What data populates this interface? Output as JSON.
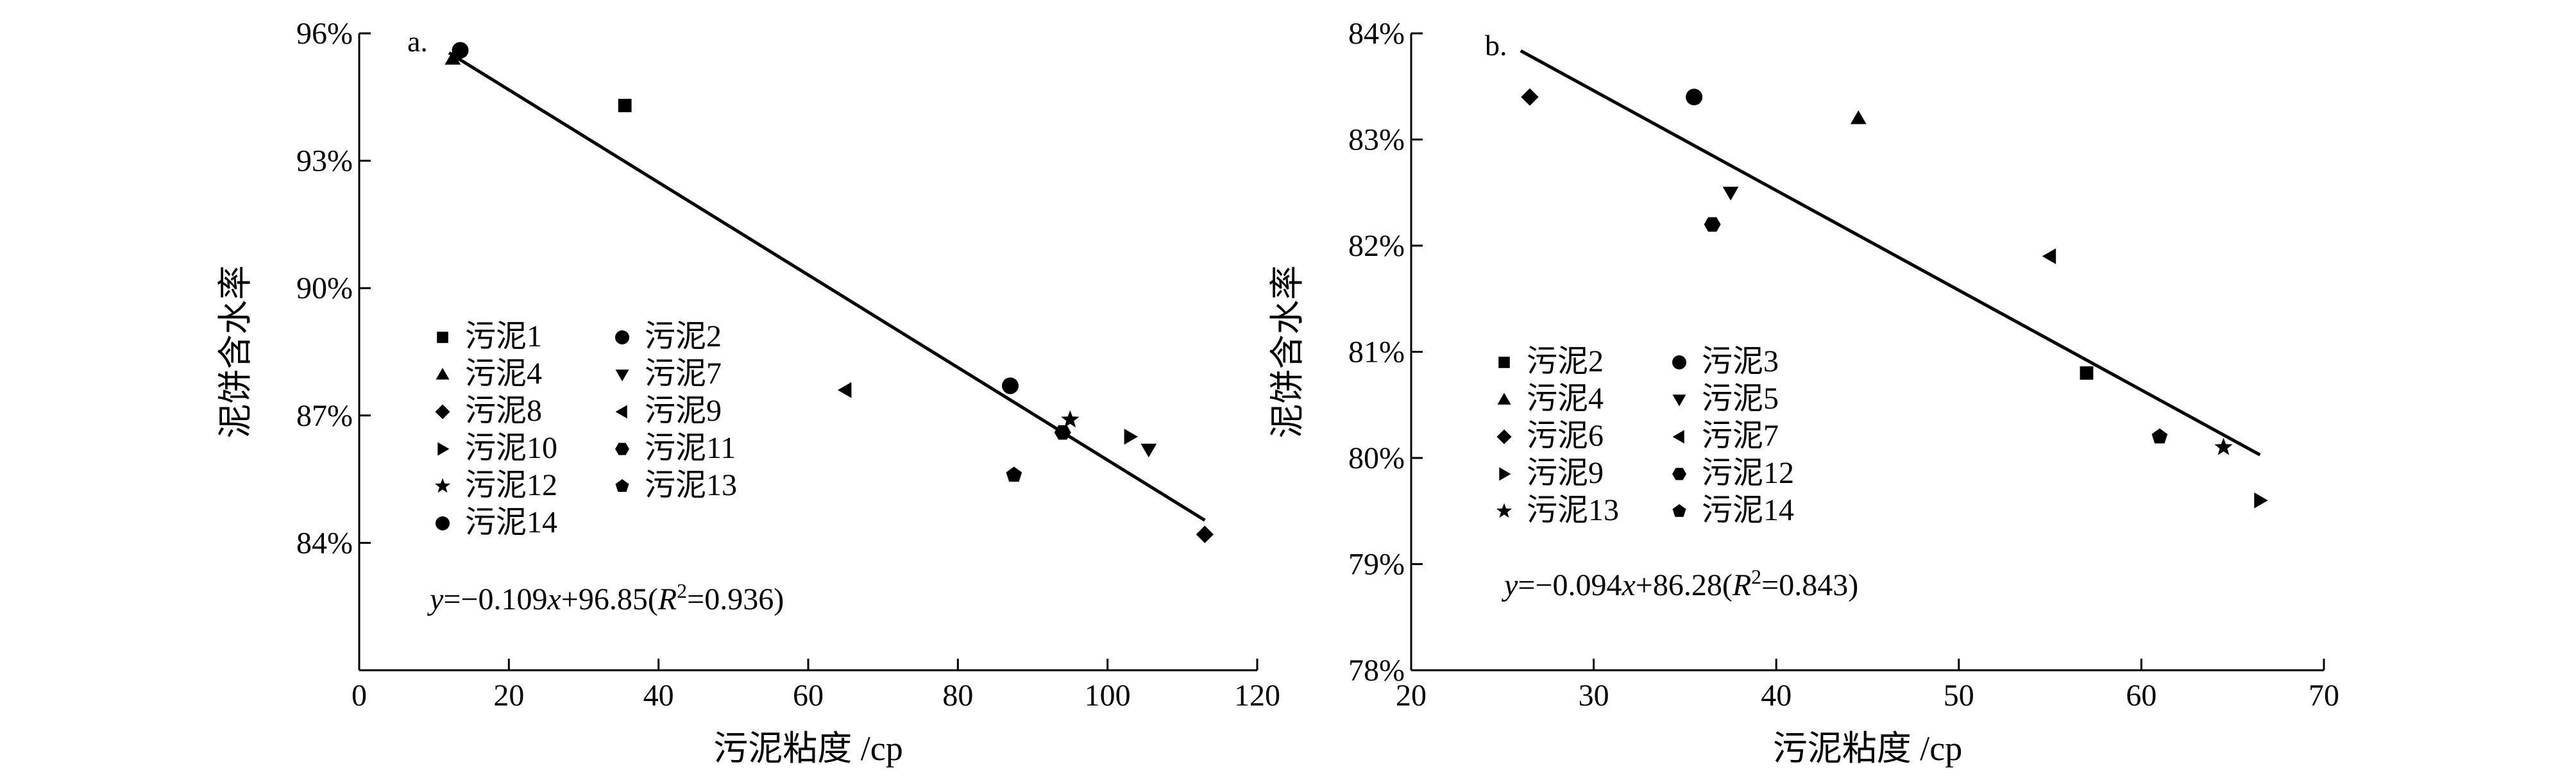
{
  "chart_data": [
    {
      "type": "scatter",
      "panel_label": "a.",
      "xlabel": "污泥粘度 /cp",
      "ylabel": "泥饼含水率",
      "xlim": [
        0,
        120
      ],
      "ylim": [
        81,
        96
      ],
      "x_ticks": [
        0,
        20,
        40,
        60,
        80,
        100,
        120
      ],
      "y_ticks": [
        84,
        87,
        90,
        93,
        96
      ],
      "y_tick_labels": [
        "84%",
        "87%",
        "90%",
        "93%",
        "96%"
      ],
      "legend_columns": 2,
      "series": [
        {
          "name": "污泥1",
          "marker": "square",
          "x": [
            35.5
          ],
          "y": [
            94.3
          ]
        },
        {
          "name": "污泥2",
          "marker": "circle",
          "x": [
            87
          ],
          "y": [
            87.7
          ]
        },
        {
          "name": "污泥4",
          "marker": "triangle-up",
          "x": [
            12.5
          ],
          "y": [
            95.4
          ]
        },
        {
          "name": "污泥7",
          "marker": "triangle-down",
          "x": [
            105.5
          ],
          "y": [
            86.2
          ]
        },
        {
          "name": "污泥8",
          "marker": "diamond",
          "x": [
            113
          ],
          "y": [
            84.2
          ]
        },
        {
          "name": "污泥9",
          "marker": "triangle-left",
          "x": [
            65
          ],
          "y": [
            87.6
          ]
        },
        {
          "name": "污泥10",
          "marker": "triangle-right",
          "x": [
            103
          ],
          "y": [
            86.5
          ]
        },
        {
          "name": "污泥11",
          "marker": "hexagon",
          "x": [
            94
          ],
          "y": [
            86.6
          ]
        },
        {
          "name": "污泥12",
          "marker": "star",
          "x": [
            95
          ],
          "y": [
            86.9
          ]
        },
        {
          "name": "污泥13",
          "marker": "pentagon",
          "x": [
            87.5
          ],
          "y": [
            85.6
          ]
        },
        {
          "name": "污泥14",
          "marker": "circle",
          "x": [
            13.5
          ],
          "y": [
            95.6
          ]
        }
      ],
      "fit_line": {
        "slope": -0.109,
        "intercept": 96.85,
        "x_range": [
          12,
          113
        ]
      },
      "equation": {
        "prefix": "y",
        "body": "=−0.109",
        "var": "x",
        "mid": "+96.85(",
        "r": "R",
        "sup": "2",
        "suffix": "=0.936)"
      }
    },
    {
      "type": "scatter",
      "panel_label": "b.",
      "xlabel": "污泥粘度 /cp",
      "ylabel": "泥饼含水率",
      "xlim": [
        20,
        70
      ],
      "ylim": [
        78,
        84
      ],
      "x_ticks": [
        20,
        30,
        40,
        50,
        60,
        70
      ],
      "y_ticks": [
        78,
        79,
        80,
        81,
        82,
        83,
        84
      ],
      "y_tick_labels": [
        "78%",
        "79%",
        "80%",
        "81%",
        "82%",
        "83%",
        "84%"
      ],
      "legend_columns": 2,
      "series": [
        {
          "name": "污泥2",
          "marker": "square",
          "x": [
            57
          ],
          "y": [
            80.8
          ]
        },
        {
          "name": "污泥3",
          "marker": "circle",
          "x": [
            35.5
          ],
          "y": [
            83.4
          ]
        },
        {
          "name": "污泥4",
          "marker": "triangle-up",
          "x": [
            44.5
          ],
          "y": [
            83.2
          ]
        },
        {
          "name": "污泥5",
          "marker": "triangle-down",
          "x": [
            37.5
          ],
          "y": [
            82.5
          ]
        },
        {
          "name": "污泥6",
          "marker": "diamond",
          "x": [
            26.5
          ],
          "y": [
            83.4
          ]
        },
        {
          "name": "污泥7",
          "marker": "triangle-left",
          "x": [
            55
          ],
          "y": [
            81.9
          ]
        },
        {
          "name": "污泥9",
          "marker": "triangle-right",
          "x": [
            66.5
          ],
          "y": [
            79.6
          ]
        },
        {
          "name": "污泥12",
          "marker": "hexagon",
          "x": [
            36.5
          ],
          "y": [
            82.2
          ]
        },
        {
          "name": "污泥13",
          "marker": "star",
          "x": [
            64.5
          ],
          "y": [
            80.1
          ]
        },
        {
          "name": "污泥14",
          "marker": "pentagon",
          "x": [
            61
          ],
          "y": [
            80.2
          ]
        }
      ],
      "fit_line": {
        "slope": -0.094,
        "intercept": 86.28,
        "x_range": [
          26,
          66.5
        ]
      },
      "equation": {
        "prefix": "y",
        "body": "=−0.094",
        "var": "x",
        "mid": "+86.28(",
        "r": "R",
        "sup": "2",
        "suffix": "=0.843)"
      }
    }
  ]
}
